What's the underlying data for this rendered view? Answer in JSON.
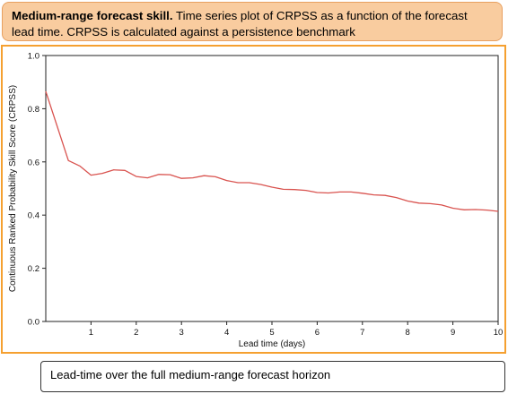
{
  "header": {
    "title_bold": "Medium-range forecast skill.",
    "title_rest": " Time series plot of CRPSS as a function of the forecast lead time. CRPSS is calculated against a persistence benchmark"
  },
  "caption": "Lead-time over the full medium-range forecast horizon",
  "colors": {
    "line": "#d9534f",
    "frame": "#f5a030",
    "header_bg": "#f9cc9f"
  },
  "chart_data": {
    "type": "line",
    "xlabel": "Lead time (days)",
    "ylabel": "Continuous Ranked Probability Skill Score (CRPSS)",
    "xlim": [
      0,
      10
    ],
    "ylim": [
      0,
      1
    ],
    "xticks": [
      1,
      2,
      3,
      4,
      5,
      6,
      7,
      8,
      9,
      10
    ],
    "yticks": [
      0.0,
      0.2,
      0.4,
      0.6,
      0.8,
      1.0
    ],
    "ytick_labels": [
      "0.0",
      "0.2",
      "0.4",
      "0.6",
      "0.8",
      "1.0"
    ],
    "grid": false,
    "x": [
      0,
      0.5,
      0.75,
      1,
      1.25,
      1.5,
      1.75,
      2,
      2.25,
      2.5,
      2.75,
      3,
      3.25,
      3.5,
      3.75,
      4,
      4.25,
      4.5,
      4.75,
      5,
      5.25,
      5.5,
      5.75,
      6,
      6.25,
      6.5,
      6.75,
      7,
      7.25,
      7.5,
      7.75,
      8,
      8.25,
      8.5,
      8.75,
      9,
      9.25,
      9.5,
      9.75,
      10
    ],
    "y": [
      0.865,
      0.605,
      0.585,
      0.55,
      0.557,
      0.57,
      0.568,
      0.545,
      0.54,
      0.553,
      0.552,
      0.538,
      0.54,
      0.548,
      0.544,
      0.53,
      0.522,
      0.522,
      0.515,
      0.505,
      0.497,
      0.496,
      0.493,
      0.485,
      0.483,
      0.487,
      0.487,
      0.482,
      0.476,
      0.474,
      0.466,
      0.453,
      0.445,
      0.443,
      0.438,
      0.426,
      0.42,
      0.421,
      0.419,
      0.414
    ]
  }
}
